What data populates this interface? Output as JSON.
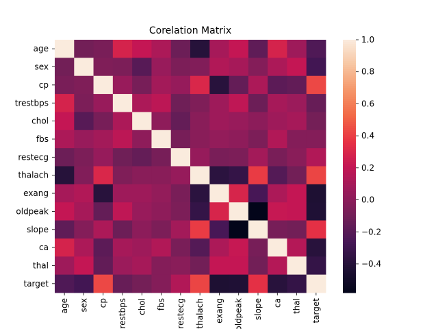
{
  "chart_data": {
    "type": "heatmap",
    "title": "Corelation Matrix",
    "labels": [
      "age",
      "sex",
      "cp",
      "trestbps",
      "chol",
      "fbs",
      "restecg",
      "thalach",
      "exang",
      "oldpeak",
      "slope",
      "ca",
      "thal",
      "target"
    ],
    "x_tick_labels": [
      "age",
      "sex",
      "cp",
      "trestbps",
      "chol",
      "fbs",
      "restecg",
      "thalach",
      "exang",
      "oldpeak",
      "slope",
      "ca",
      "thal",
      "target"
    ],
    "y_tick_labels": [
      "age",
      "sex",
      "cp",
      "trestbps",
      "chol",
      "fbs",
      "restecg",
      "thalach",
      "exang",
      "oldpeak",
      "slope",
      "ca",
      "thal",
      "target"
    ],
    "matrix": [
      [
        1.0,
        -0.1,
        -0.07,
        0.28,
        0.21,
        0.12,
        -0.12,
        -0.4,
        0.1,
        0.21,
        -0.17,
        0.28,
        0.07,
        -0.23
      ],
      [
        -0.1,
        1.0,
        -0.05,
        -0.06,
        -0.2,
        0.05,
        -0.06,
        -0.04,
        0.14,
        0.1,
        -0.03,
        0.12,
        0.21,
        -0.28
      ],
      [
        -0.07,
        -0.05,
        1.0,
        0.05,
        -0.08,
        0.09,
        0.04,
        0.3,
        -0.39,
        -0.15,
        0.12,
        -0.18,
        -0.16,
        0.43
      ],
      [
        0.28,
        -0.06,
        0.05,
        1.0,
        0.12,
        0.18,
        -0.11,
        -0.05,
        0.07,
        0.19,
        -0.12,
        0.1,
        0.06,
        -0.14
      ],
      [
        0.21,
        -0.2,
        -0.08,
        0.12,
        1.0,
        0.01,
        -0.15,
        -0.01,
        0.07,
        0.05,
        -0.0,
        0.07,
        0.1,
        -0.09
      ],
      [
        0.12,
        0.05,
        0.09,
        0.18,
        0.01,
        1.0,
        -0.08,
        -0.01,
        0.03,
        0.01,
        -0.06,
        0.14,
        -0.03,
        -0.03
      ],
      [
        -0.12,
        -0.06,
        0.04,
        -0.11,
        -0.15,
        -0.08,
        1.0,
        0.04,
        -0.07,
        -0.06,
        0.09,
        -0.07,
        -0.01,
        0.14
      ],
      [
        -0.4,
        -0.04,
        0.3,
        -0.05,
        -0.01,
        -0.01,
        0.04,
        1.0,
        -0.38,
        -0.34,
        0.39,
        -0.21,
        -0.1,
        0.42
      ],
      [
        0.1,
        0.14,
        -0.39,
        0.07,
        0.07,
        0.03,
        -0.07,
        -0.38,
        1.0,
        0.29,
        -0.26,
        0.12,
        0.21,
        -0.44
      ],
      [
        0.21,
        0.1,
        -0.15,
        0.19,
        0.05,
        0.01,
        -0.06,
        -0.34,
        0.29,
        1.0,
        -0.58,
        0.22,
        0.21,
        -0.43
      ],
      [
        -0.17,
        -0.03,
        0.12,
        -0.12,
        -0.0,
        -0.06,
        0.09,
        0.39,
        -0.26,
        -0.58,
        1.0,
        -0.08,
        -0.1,
        0.35
      ],
      [
        0.28,
        0.12,
        -0.18,
        0.1,
        0.07,
        0.14,
        -0.07,
        -0.21,
        0.12,
        0.22,
        -0.08,
        1.0,
        0.15,
        -0.39
      ],
      [
        0.07,
        0.21,
        -0.16,
        0.06,
        0.1,
        -0.03,
        -0.01,
        -0.1,
        0.21,
        0.21,
        -0.1,
        0.15,
        1.0,
        -0.34
      ],
      [
        -0.23,
        -0.28,
        0.43,
        -0.14,
        -0.09,
        -0.03,
        0.14,
        0.42,
        -0.44,
        -0.43,
        0.35,
        -0.39,
        -0.34,
        1.0
      ]
    ],
    "vmin": -0.58,
    "vmax": 1.0,
    "colormap": "rocket",
    "colorbar_ticks": [
      1.0,
      0.8,
      0.6,
      0.4,
      0.2,
      0.0,
      -0.2,
      -0.4
    ],
    "colorbar_tick_labels": [
      "1.0",
      "0.8",
      "0.6",
      "0.4",
      "0.2",
      "0.0",
      "−0.2",
      "−0.4"
    ],
    "grid": false
  }
}
